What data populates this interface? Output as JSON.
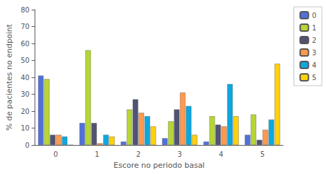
{
  "chart_data": {
    "type": "bar",
    "xlabel": "Escore no periodo basal",
    "ylabel": "% de pacientes no endpoint",
    "categories": [
      "0",
      "1",
      "2",
      "3",
      "4",
      "5"
    ],
    "series": [
      {
        "name": "0",
        "values": [
          41,
          13,
          2,
          4,
          2,
          6
        ]
      },
      {
        "name": "1",
        "values": [
          39,
          56,
          21,
          14,
          17,
          18
        ]
      },
      {
        "name": "2",
        "values": [
          6,
          13,
          27,
          21,
          12,
          3
        ]
      },
      {
        "name": "3",
        "values": [
          6,
          1,
          19,
          31,
          11,
          9
        ]
      },
      {
        "name": "4",
        "values": [
          5,
          6,
          17,
          23,
          36,
          15
        ]
      },
      {
        "name": "5",
        "values": [
          0,
          5,
          11,
          6,
          17,
          48
        ]
      }
    ],
    "ylim": [
      0,
      80
    ],
    "yticks": [
      0,
      10,
      20,
      30,
      40,
      50,
      60,
      70,
      80
    ],
    "grid": false,
    "legend": "right"
  }
}
